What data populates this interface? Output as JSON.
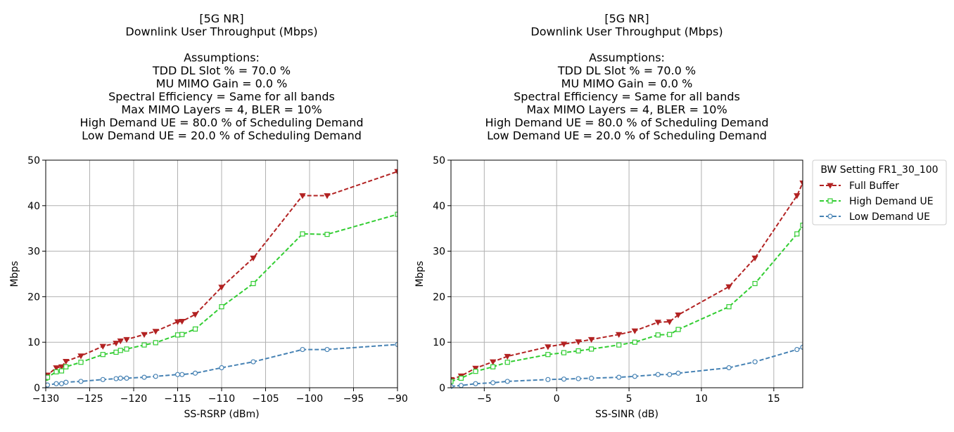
{
  "colors": {
    "full_buffer": "#b22222",
    "high_demand": "#32cd32",
    "low_demand": "#4682b4",
    "grid": "#b0b0b0"
  },
  "legend": {
    "title": "BW Setting FR1_30_100",
    "placement": "outside-right-top",
    "entries": [
      "Full Buffer",
      "High Demand UE",
      "Low Demand UE"
    ]
  },
  "chart_data": [
    {
      "type": "line",
      "title": "[5G NR]\nDownlink User Throughput (Mbps)\n\nAssumptions:\nTDD DL Slot % = 70.0 %\nMU MIMO Gain = 0.0 %\nSpectral Efficiency = Same for all bands\nMax MIMO Layers = 4, BLER = 10%\nHigh Demand UE = 80.0 % of Scheduling Demand\nLow Demand UE = 20.0 % of Scheduling Demand",
      "xlabel": "SS-RSRP (dBm)",
      "ylabel": "Mbps",
      "xlim": [
        -130,
        -90
      ],
      "ylim": [
        0,
        50
      ],
      "xticks": [
        -130,
        -125,
        -120,
        -115,
        -110,
        -105,
        -100,
        -95,
        -90
      ],
      "yticks": [
        0,
        10,
        20,
        30,
        40,
        50
      ],
      "grid": true,
      "series": [
        {
          "name": "Full Buffer",
          "marker": "triangle-down",
          "x": [
            -130,
            -129.8,
            -128.8,
            -128.2,
            -127.7,
            -126,
            -123.5,
            -122,
            -121.5,
            -120.8,
            -118.8,
            -117.5,
            -115,
            -114.5,
            -113,
            -110,
            -106.4,
            -100.8,
            -98,
            -90
          ],
          "y": [
            2.6,
            2.8,
            4.4,
            4.6,
            5.8,
            7,
            9.1,
            9.8,
            10.3,
            10.6,
            11.7,
            12.4,
            14.5,
            14.6,
            16.1,
            22.1,
            28.5,
            42.2,
            42.2,
            47.5
          ]
        },
        {
          "name": "High Demand UE",
          "marker": "square",
          "x": [
            -130,
            -129.8,
            -128.8,
            -128.2,
            -127.7,
            -126,
            -123.5,
            -122,
            -121.5,
            -120.8,
            -118.8,
            -117.5,
            -115,
            -114.5,
            -113,
            -110,
            -106.4,
            -100.8,
            -98,
            -90
          ],
          "y": [
            2.1,
            2.3,
            3.5,
            3.7,
            4.6,
            5.6,
            7.3,
            7.8,
            8.2,
            8.5,
            9.4,
            9.9,
            11.6,
            11.7,
            12.9,
            17.8,
            22.9,
            33.8,
            33.7,
            38.1
          ]
        },
        {
          "name": "Low Demand UE",
          "marker": "circle",
          "x": [
            -130,
            -129.8,
            -128.8,
            -128.2,
            -127.7,
            -126,
            -123.5,
            -122,
            -121.5,
            -120.8,
            -118.8,
            -117.5,
            -115,
            -114.5,
            -113,
            -110,
            -106.4,
            -100.8,
            -98,
            -90
          ],
          "y": [
            0.5,
            0.6,
            0.9,
            0.9,
            1.2,
            1.4,
            1.8,
            2.0,
            2.1,
            2.1,
            2.3,
            2.5,
            2.9,
            2.9,
            3.2,
            4.4,
            5.7,
            8.4,
            8.4,
            9.5
          ]
        }
      ]
    },
    {
      "type": "line",
      "title": "[5G NR]\nDownlink User Throughput (Mbps)\n\nAssumptions:\nTDD DL Slot % = 70.0 %\nMU MIMO Gain = 0.0 %\nSpectral Efficiency = Same for all bands\nMax MIMO Layers = 4, BLER = 10%\nHigh Demand UE = 80.0 % of Scheduling Demand\nLow Demand UE = 20.0 % of Scheduling Demand",
      "xlabel": "SS-SINR (dB)",
      "ylabel": "Mbps",
      "xlim": [
        -7.3,
        17.0
      ],
      "ylim": [
        0,
        50
      ],
      "xticks": [
        -5,
        0,
        5,
        10,
        15
      ],
      "yticks": [
        0,
        10,
        20,
        30,
        40,
        50
      ],
      "grid": true,
      "series": [
        {
          "name": "Full Buffer",
          "marker": "triangle-down",
          "x": [
            -7.3,
            -6.6,
            -5.6,
            -4.4,
            -3.4,
            -0.6,
            0.5,
            1.5,
            2.4,
            4.3,
            5.4,
            7.0,
            7.8,
            8.4,
            11.9,
            13.7,
            16.6,
            17.0
          ],
          "y": [
            1.8,
            2.6,
            4.3,
            5.7,
            6.9,
            9.0,
            9.6,
            10.1,
            10.6,
            11.7,
            12.5,
            14.4,
            14.5,
            16.0,
            22.2,
            28.5,
            42.2,
            45.0
          ]
        },
        {
          "name": "High Demand UE",
          "marker": "square",
          "x": [
            -7.3,
            -6.6,
            -5.6,
            -4.4,
            -3.4,
            -0.6,
            0.5,
            1.5,
            2.4,
            4.3,
            5.4,
            7.0,
            7.8,
            8.4,
            11.9,
            13.7,
            16.6,
            17.0
          ],
          "y": [
            1.4,
            2.1,
            3.6,
            4.6,
            5.6,
            7.3,
            7.7,
            8.1,
            8.5,
            9.4,
            10.0,
            11.6,
            11.7,
            12.8,
            17.8,
            22.9,
            33.8,
            35.7
          ]
        },
        {
          "name": "Low Demand UE",
          "marker": "circle",
          "x": [
            -7.3,
            -6.6,
            -5.6,
            -4.4,
            -3.4,
            -0.6,
            0.5,
            1.5,
            2.4,
            4.3,
            5.4,
            7.0,
            7.8,
            8.4,
            11.9,
            13.7,
            16.6,
            17.0
          ],
          "y": [
            0.3,
            0.5,
            0.9,
            1.1,
            1.4,
            1.8,
            1.9,
            2.0,
            2.1,
            2.3,
            2.5,
            2.9,
            2.9,
            3.2,
            4.4,
            5.7,
            8.4,
            8.9
          ]
        }
      ]
    }
  ]
}
